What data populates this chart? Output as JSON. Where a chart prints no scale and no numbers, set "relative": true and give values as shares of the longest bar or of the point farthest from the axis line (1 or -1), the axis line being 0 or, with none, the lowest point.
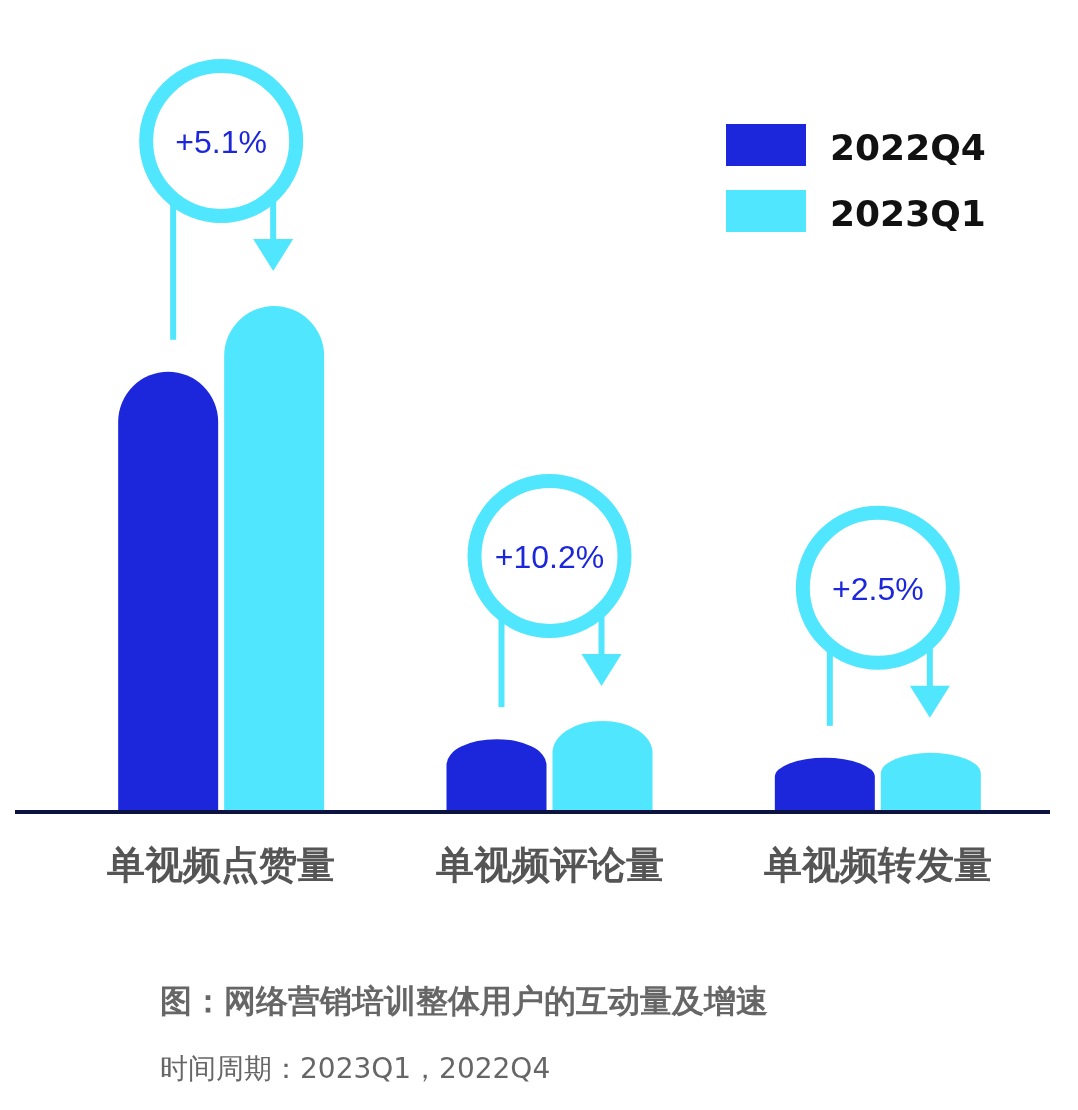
{
  "chart_data": {
    "type": "bar",
    "relative": true,
    "title": "图：网络营销培训整体用户的互动量及增速",
    "categories": [
      "单视频点赞量",
      "单视频评论量",
      "单视频转发量"
    ],
    "series": [
      {
        "name": "2022Q4",
        "color": "#1c27dc",
        "values": [
          0.87,
          0.144,
          0.107
        ]
      },
      {
        "name": "2023Q1",
        "color": "#50e6fd",
        "values": [
          1,
          0.18,
          0.117
        ]
      }
    ],
    "annotations": [
      "+5.1%",
      "+10.2%",
      "+2.5%",
      "时间周期：2023Q1，2022Q4"
    ],
    "legend": "top right"
  }
}
